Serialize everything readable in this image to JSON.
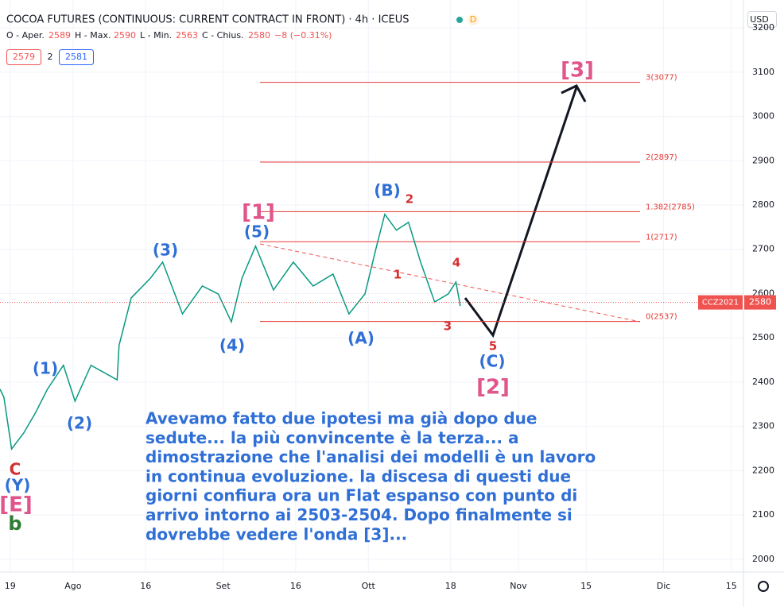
{
  "chart_data": {
    "type": "line",
    "title": "COCOA FUTURES (CONTINUOUS: CURRENT CONTRACT IN FRONT) · 4h · ICEUS",
    "header": {
      "open_label": "O - Aper.",
      "open": 2589,
      "high_label": "H - Max.",
      "high": 2590,
      "low_label": "L - Min.",
      "low": 2563,
      "close_label": "C - Chius.",
      "close": 2580,
      "change": "−8 (−0.31%)",
      "bid": "2579",
      "spread": "2",
      "ask": "2581",
      "badge": "D",
      "currency": "USD"
    },
    "symbol_label": "CCZ2021",
    "series": [
      {
        "name": "CCZ2021",
        "color": "#089981",
        "x": [
          -2.1,
          -1.3,
          0.3,
          2.8,
          5.2,
          7.7,
          11,
          13.4,
          16.7,
          22.1,
          22.5,
          25,
          29,
          31.5,
          35.6,
          39.7,
          43,
          45.7,
          47.9,
          50.7,
          54.4,
          58.5,
          62.6,
          66.7,
          70,
          73.3,
          75.7,
          77.4,
          79.8,
          82.3,
          84.8,
          87.7,
          90.5,
          92.1,
          93
        ],
        "values": [
          2384,
          2366,
          2249,
          2285,
          2330,
          2384,
          2438,
          2357,
          2438,
          2405,
          2483,
          2590,
          2635,
          2671,
          2554,
          2617,
          2599,
          2536,
          2635,
          2707,
          2608,
          2671,
          2617,
          2644,
          2554,
          2599,
          2707,
          2779,
          2743,
          2761,
          2671,
          2581,
          2599,
          2626,
          2572
        ]
      }
    ],
    "xlim": [
      -2.1,
      151.5
    ],
    "xticks": [
      {
        "value": 0,
        "label": "19"
      },
      {
        "value": 13,
        "label": "Ago"
      },
      {
        "value": 28,
        "label": "16"
      },
      {
        "value": 44,
        "label": "Set"
      },
      {
        "value": 59,
        "label": "16"
      },
      {
        "value": 74,
        "label": "Ott"
      },
      {
        "value": 91,
        "label": "18"
      },
      {
        "value": 105,
        "label": "Nov"
      },
      {
        "value": 119,
        "label": "15"
      },
      {
        "value": 135,
        "label": "Dic"
      },
      {
        "value": 149,
        "label": "15"
      }
    ],
    "ylim": [
      1971,
      3263
    ],
    "yticks": [
      2000,
      2100,
      2200,
      2300,
      2400,
      2500,
      2600,
      2700,
      2800,
      2900,
      3000,
      3100,
      3200
    ],
    "grid": true,
    "fib_levels": [
      {
        "value": 3077,
        "label": "3(3077)"
      },
      {
        "value": 2897,
        "label": "2(2897)"
      },
      {
        "value": 2785,
        "label": "1.382(2785)"
      },
      {
        "value": 2717,
        "label": "1(2717)"
      },
      {
        "value": 2537,
        "label": "0(2537)"
      }
    ],
    "wave_labels": [
      "(1)",
      "(2)",
      "(3)",
      "(4)",
      "(5)",
      "[1]",
      "(B)",
      "2",
      "1",
      "4",
      "3",
      "(A)",
      "5",
      "(C)",
      "[2]",
      "[3]",
      "C",
      "(Y)",
      "[E]",
      "b"
    ],
    "comment": [
      "Avevamo fatto due ipotesi ma già dopo due",
      "sedute... la più convincente è la terza... a",
      "dimostrazione che l'analisi dei modelli è un lavoro",
      "in continua evoluzione. la discesa di questi due",
      "giorni confiura ora un Flat espanso con punto di",
      "arrivo intorno ai 2503-2504. Dopo finalmente si",
      "dovrebbe vedere l'onda [3]..."
    ]
  }
}
